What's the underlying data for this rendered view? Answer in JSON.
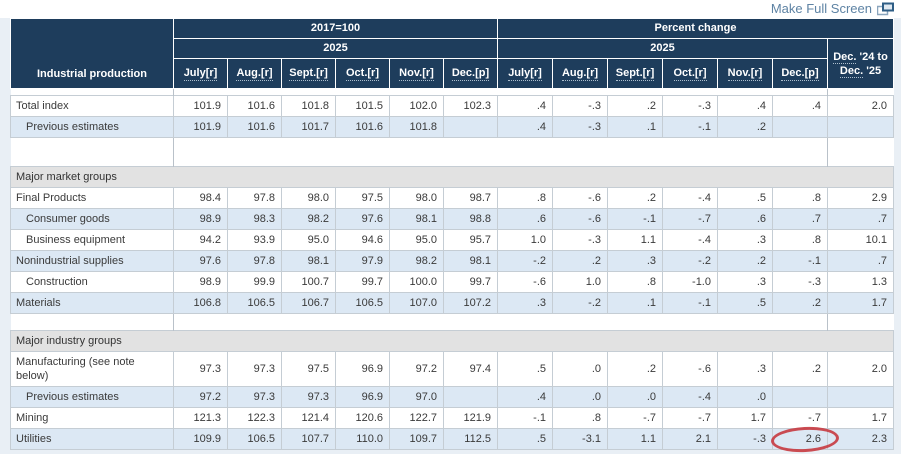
{
  "page": {
    "fullscreen_link": "Make Full Screen"
  },
  "colors": {
    "header_navy": "#1e3d5c",
    "row_alt_blue": "#dce8f4",
    "section_gray": "#e2e2e2",
    "annotation_red": "#c73a40",
    "link_blue": "#5e83a4"
  },
  "table": {
    "corner_label": "Industrial production",
    "groups": [
      {
        "label": "2017=100",
        "year": "2025"
      },
      {
        "label": "Percent change",
        "year": "2025"
      }
    ],
    "months": [
      "July[r]",
      "Aug.[r]",
      "Sept.[r]",
      "Oct.[r]",
      "Nov.[r]",
      "Dec.[p]"
    ],
    "yoy_header": {
      "dec1": "Dec.",
      "rest1": " '24 to",
      "dec2": "Dec.",
      "rest2": " '25"
    },
    "rows": [
      {
        "type": "spacer",
        "height": 6
      },
      {
        "type": "data",
        "label": "Total index",
        "indent": false,
        "index": [
          "101.9",
          "101.6",
          "101.8",
          "101.5",
          "102.0",
          "102.3"
        ],
        "pct": [
          ".4",
          "-.3",
          ".2",
          "-.3",
          ".4",
          ".4"
        ],
        "yoy": "2.0"
      },
      {
        "type": "data",
        "label": "Previous estimates",
        "indent": true,
        "index": [
          "101.9",
          "101.6",
          "101.7",
          "101.6",
          "101.8",
          ""
        ],
        "pct": [
          ".4",
          "-.3",
          ".1",
          "-.1",
          ".2",
          ""
        ],
        "yoy": ""
      },
      {
        "type": "spacer",
        "height": 28
      },
      {
        "type": "section",
        "label": "Major market groups"
      },
      {
        "type": "data",
        "label": "Final Products",
        "indent": false,
        "index": [
          "98.4",
          "97.8",
          "98.0",
          "97.5",
          "98.0",
          "98.7"
        ],
        "pct": [
          ".8",
          "-.6",
          ".2",
          "-.4",
          ".5",
          ".8"
        ],
        "yoy": "2.9"
      },
      {
        "type": "data",
        "label": "Consumer goods",
        "indent": true,
        "index": [
          "98.9",
          "98.3",
          "98.2",
          "97.6",
          "98.1",
          "98.8"
        ],
        "pct": [
          ".6",
          "-.6",
          "-.1",
          "-.7",
          ".6",
          ".7"
        ],
        "yoy": ".7"
      },
      {
        "type": "data",
        "label": "Business equipment",
        "indent": true,
        "index": [
          "94.2",
          "93.9",
          "95.0",
          "94.6",
          "95.0",
          "95.7"
        ],
        "pct": [
          "1.0",
          "-.3",
          "1.1",
          "-.4",
          ".3",
          ".8"
        ],
        "yoy": "10.1"
      },
      {
        "type": "data",
        "label": "Nonindustrial supplies",
        "indent": false,
        "index": [
          "97.6",
          "97.8",
          "98.1",
          "97.9",
          "98.2",
          "98.1"
        ],
        "pct": [
          "-.2",
          ".2",
          ".3",
          "-.2",
          ".2",
          "-.1"
        ],
        "yoy": ".7"
      },
      {
        "type": "data",
        "label": "Construction",
        "indent": true,
        "index": [
          "98.9",
          "99.9",
          "100.7",
          "99.7",
          "100.0",
          "99.7"
        ],
        "pct": [
          "-.6",
          "1.0",
          ".8",
          "-1.0",
          ".3",
          "-.3"
        ],
        "yoy": "1.3"
      },
      {
        "type": "data",
        "label": "Materials",
        "indent": false,
        "index": [
          "106.8",
          "106.5",
          "106.7",
          "106.5",
          "107.0",
          "107.2"
        ],
        "pct": [
          ".3",
          "-.2",
          ".1",
          "-.1",
          ".5",
          ".2"
        ],
        "yoy": "1.7"
      },
      {
        "type": "spacer",
        "height": 16
      },
      {
        "type": "section",
        "label": "Major industry groups"
      },
      {
        "type": "data",
        "label": "Manufacturing (see note below)",
        "indent": false,
        "index": [
          "97.3",
          "97.3",
          "97.5",
          "96.9",
          "97.2",
          "97.4"
        ],
        "pct": [
          ".5",
          ".0",
          ".2",
          "-.6",
          ".3",
          ".2"
        ],
        "yoy": "2.0"
      },
      {
        "type": "data",
        "label": "Previous estimates",
        "indent": true,
        "index": [
          "97.2",
          "97.3",
          "97.3",
          "96.9",
          "97.0",
          ""
        ],
        "pct": [
          ".4",
          ".0",
          ".0",
          "-.4",
          ".0",
          ""
        ],
        "yoy": ""
      },
      {
        "type": "data",
        "label": "Mining",
        "indent": false,
        "index": [
          "121.3",
          "122.3",
          "121.4",
          "120.6",
          "122.7",
          "121.9"
        ],
        "pct": [
          "-.1",
          ".8",
          "-.7",
          "-.7",
          "1.7",
          "-.7"
        ],
        "yoy": "1.7"
      },
      {
        "type": "data",
        "label": "Utilities",
        "indent": false,
        "index": [
          "109.9",
          "106.5",
          "107.7",
          "110.0",
          "109.7",
          "112.5"
        ],
        "pct": [
          ".5",
          "-3.1",
          "1.1",
          "2.1",
          "-.3",
          "2.6"
        ],
        "yoy": "2.3"
      }
    ]
  },
  "annotation": {
    "shape": "ellipse",
    "color": "#c73a40",
    "row_label": "Utilities",
    "column": "Dec.[p] percent change",
    "circled_value": "2.6"
  }
}
